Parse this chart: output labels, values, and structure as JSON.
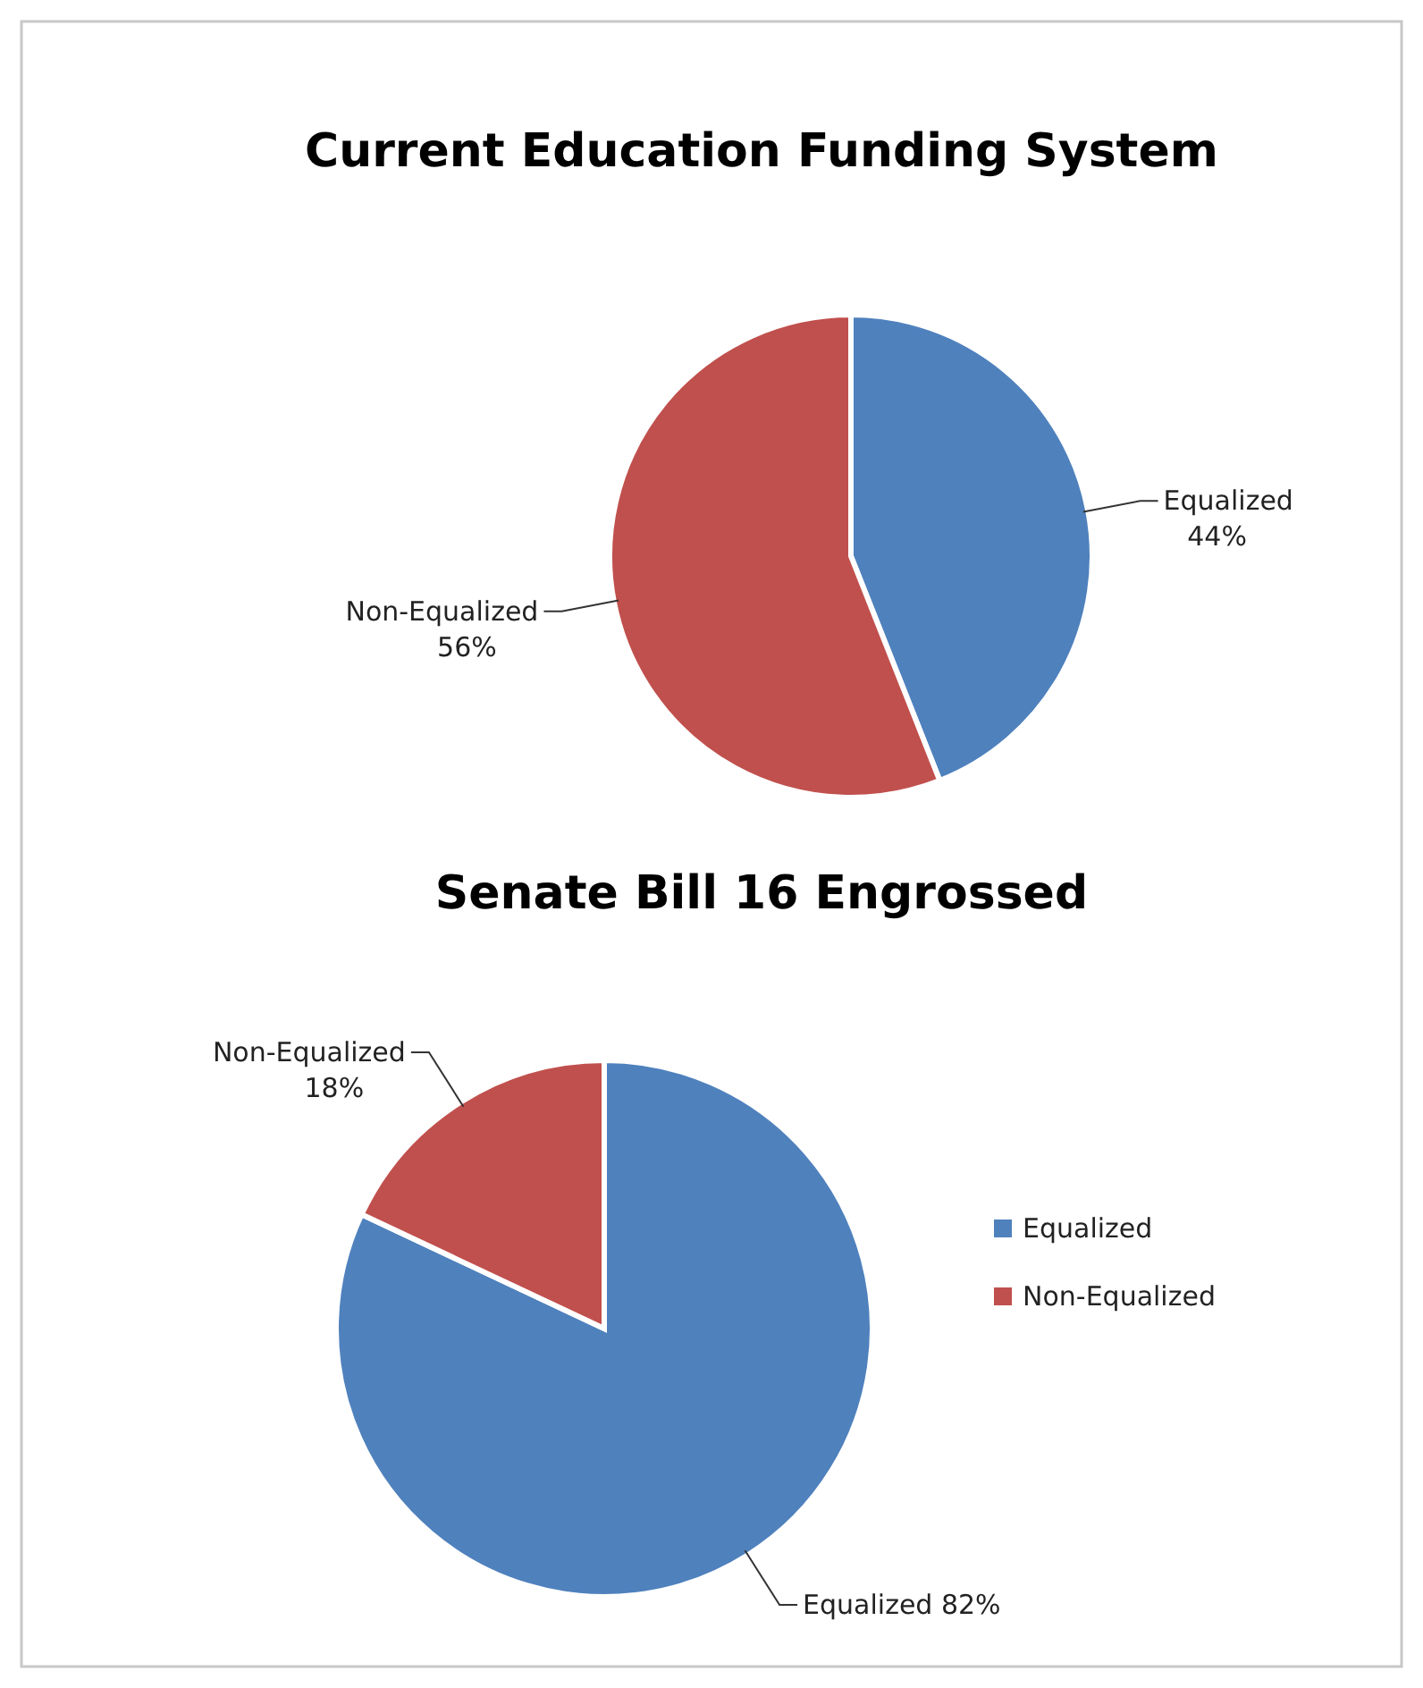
{
  "chart_data": [
    {
      "type": "pie",
      "title": "Current Education Funding System",
      "categories": [
        "Equalized",
        "Non-Equalized"
      ],
      "values": [
        44,
        56
      ],
      "colors": [
        "#4f81bd",
        "#c0504d"
      ],
      "value_labels": [
        "44%",
        "56%"
      ],
      "legend": false
    },
    {
      "type": "pie",
      "title": "Senate Bill 16 Engrossed",
      "categories": [
        "Equalized",
        "Non-Equalized"
      ],
      "values": [
        82,
        18
      ],
      "colors": [
        "#4f81bd",
        "#c0504d"
      ],
      "value_labels": [
        "82%",
        "18%"
      ],
      "legend": "right"
    }
  ]
}
